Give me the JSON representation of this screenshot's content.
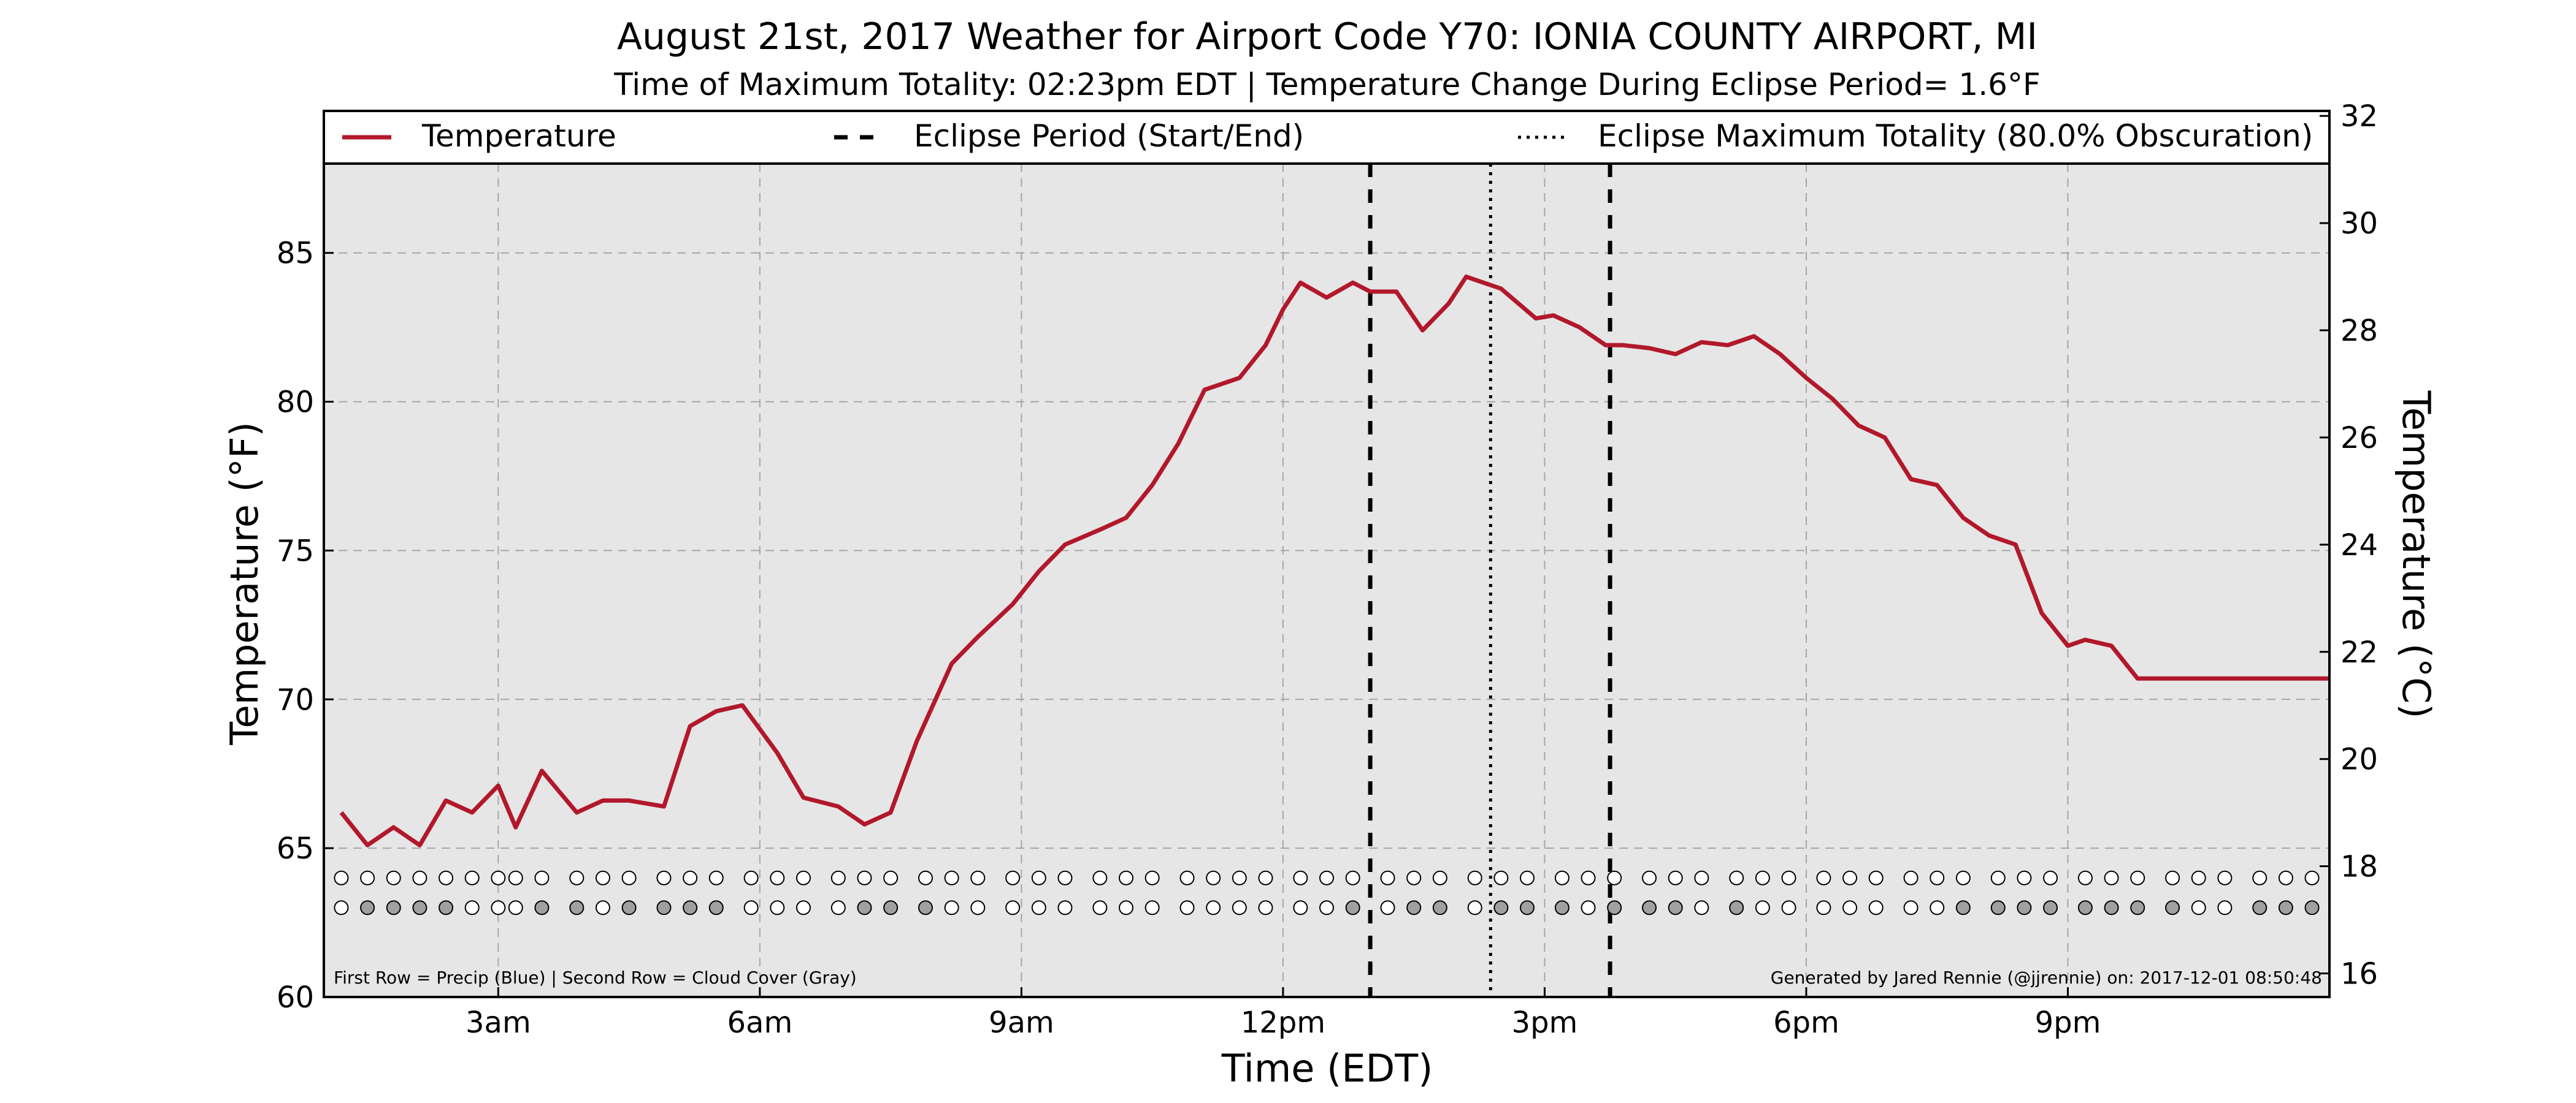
{
  "title": "August 21st, 2017 Weather for Airport Code Y70: IONIA COUNTY AIRPORT, MI",
  "subtitle": "Time of Maximum Totality: 02:23pm EDT | Temperature Change During Eclipse Period= 1.6°F",
  "footer_left": "First Row = Precip (Blue) | Second Row = Cloud Cover (Gray)",
  "footer_right": "Generated by Jared Rennie (@jjrennie) on: 2017-12-01 08:50:48",
  "colors": {
    "temperature_line": "#b2182b",
    "plot_background": "#e6e6e6",
    "grid": "#a6a6a6",
    "cloud_fill": "#a0a0a0",
    "clear_fill": "#ffffff"
  },
  "legend": {
    "items": [
      {
        "label": "Temperature",
        "style": "solid",
        "color": "#b2182b"
      },
      {
        "label": "Eclipse Period (Start/End)",
        "style": "dashed",
        "color": "#000000"
      },
      {
        "label": "Eclipse Maximum Totality (80.0% Obscuration)",
        "style": "dotted",
        "color": "#000000"
      }
    ]
  },
  "chart_data": {
    "type": "line",
    "title": "August 21st, 2017 Weather for Airport Code Y70: IONIA COUNTY AIRPORT, MI",
    "subtitle": "Time of Maximum Totality: 02:23pm EDT | Temperature Change During Eclipse Period= 1.6°F",
    "xlabel": "Time (EDT)",
    "ylabel": "Temperature (°F)",
    "ylabel_right": "Temperature (°C)",
    "x_unit": "hours (EDT)",
    "xlim": [
      1.0,
      24.0
    ],
    "ylim": [
      60,
      88
    ],
    "ylim_right": [
      15.56,
      31.11
    ],
    "xticks": [
      {
        "value": 3,
        "label": "3am"
      },
      {
        "value": 6,
        "label": "6am"
      },
      {
        "value": 9,
        "label": "9am"
      },
      {
        "value": 12,
        "label": "12pm"
      },
      {
        "value": 15,
        "label": "3pm"
      },
      {
        "value": 18,
        "label": "6pm"
      },
      {
        "value": 21,
        "label": "9pm"
      }
    ],
    "yticks": [
      60,
      65,
      70,
      75,
      80,
      85
    ],
    "yticks_right": [
      16,
      18,
      20,
      22,
      24,
      26,
      28,
      30,
      32
    ],
    "grid": true,
    "legend_position": "top",
    "eclipse": {
      "start": 13.0,
      "end": 15.75,
      "max_totality": 14.38
    },
    "series": [
      {
        "name": "Temperature",
        "x": [
          1.2,
          1.5,
          1.8,
          2.1,
          2.4,
          2.7,
          3.0,
          3.2,
          3.5,
          3.9,
          4.2,
          4.5,
          4.9,
          5.2,
          5.5,
          5.8,
          6.2,
          6.5,
          6.9,
          7.2,
          7.5,
          7.8,
          8.2,
          8.5,
          8.9,
          9.2,
          9.5,
          9.9,
          10.2,
          10.5,
          10.8,
          11.1,
          11.5,
          11.8,
          12.0,
          12.2,
          12.5,
          12.8,
          13.0,
          13.3,
          13.6,
          13.9,
          14.1,
          14.3,
          14.5,
          14.9,
          15.1,
          15.4,
          15.7,
          15.9,
          16.2,
          16.5,
          16.8,
          17.1,
          17.4,
          17.7,
          18.0,
          18.3,
          18.6,
          18.9,
          19.2,
          19.5,
          19.8,
          20.1,
          20.4,
          20.7,
          21.0,
          21.2,
          21.5,
          21.8,
          22.0,
          22.2,
          22.5,
          22.8,
          23.1,
          23.4,
          23.7,
          24.0
        ],
        "values": [
          66.2,
          65.1,
          65.7,
          65.1,
          66.6,
          66.2,
          67.1,
          65.7,
          67.6,
          66.2,
          66.6,
          66.6,
          66.4,
          69.1,
          69.6,
          69.8,
          68.2,
          66.7,
          66.4,
          65.8,
          66.2,
          68.6,
          71.2,
          72.1,
          73.2,
          74.3,
          75.2,
          75.7,
          76.1,
          77.2,
          78.6,
          80.4,
          80.8,
          81.9,
          83.1,
          84.0,
          83.5,
          84.0,
          83.7,
          83.7,
          82.4,
          83.3,
          84.2,
          84.0,
          83.8,
          82.8,
          82.9,
          82.5,
          81.9,
          81.9,
          81.8,
          81.6,
          82.0,
          81.9,
          82.2,
          81.6,
          80.8,
          80.1,
          79.2,
          78.8,
          77.4,
          77.2,
          76.1,
          75.5,
          75.2,
          72.9,
          71.8,
          72.0,
          71.8,
          70.7,
          70.7,
          70.7,
          70.7,
          70.7,
          70.7,
          70.7,
          70.7,
          70.7
        ]
      }
    ],
    "precip_row": {
      "x": [
        1.2,
        1.5,
        1.8,
        2.1,
        2.4,
        2.7,
        3.0,
        3.2,
        3.5,
        3.9,
        4.2,
        4.5,
        4.9,
        5.2,
        5.5,
        5.9,
        6.2,
        6.5,
        6.9,
        7.2,
        7.5,
        7.9,
        8.2,
        8.5,
        8.9,
        9.2,
        9.5,
        9.9,
        10.2,
        10.5,
        10.9,
        11.2,
        11.5,
        11.8,
        12.2,
        12.5,
        12.8,
        13.2,
        13.5,
        13.8,
        14.2,
        14.5,
        14.8,
        15.2,
        15.5,
        15.8,
        16.2,
        16.5,
        16.8,
        17.2,
        17.5,
        17.8,
        18.2,
        18.5,
        18.8,
        19.2,
        19.5,
        19.8,
        20.2,
        20.5,
        20.8,
        21.2,
        21.5,
        21.8,
        22.2,
        22.5,
        22.8,
        23.2,
        23.5,
        23.8
      ],
      "state": "none"
    },
    "cloud_row": {
      "x": [
        1.2,
        1.5,
        1.8,
        2.1,
        2.4,
        2.7,
        3.0,
        3.2,
        3.5,
        3.9,
        4.2,
        4.5,
        4.9,
        5.2,
        5.5,
        5.9,
        6.2,
        6.5,
        6.9,
        7.2,
        7.5,
        7.9,
        8.2,
        8.5,
        8.9,
        9.2,
        9.5,
        9.9,
        10.2,
        10.5,
        10.9,
        11.2,
        11.5,
        11.8,
        12.2,
        12.5,
        12.8,
        13.2,
        13.5,
        13.8,
        14.2,
        14.5,
        14.8,
        15.2,
        15.5,
        15.8,
        16.2,
        16.5,
        16.8,
        17.2,
        17.5,
        17.8,
        18.2,
        18.5,
        18.8,
        19.2,
        19.5,
        19.8,
        20.2,
        20.5,
        20.8,
        21.2,
        21.5,
        21.8,
        22.2,
        22.5,
        22.8,
        23.2,
        23.5,
        23.8
      ],
      "cloudy": [
        0,
        1,
        1,
        1,
        1,
        0,
        0,
        0,
        1,
        1,
        0,
        1,
        1,
        1,
        1,
        0,
        0,
        0,
        0,
        1,
        1,
        1,
        0,
        0,
        0,
        0,
        0,
        0,
        0,
        0,
        0,
        0,
        0,
        0,
        0,
        0,
        1,
        0,
        1,
        1,
        0,
        1,
        1,
        1,
        0,
        1,
        1,
        1,
        0,
        1,
        0,
        0,
        0,
        0,
        0,
        0,
        0,
        1,
        1,
        1,
        1,
        1,
        1,
        1,
        1,
        0,
        0,
        1,
        1,
        1
      ]
    }
  }
}
